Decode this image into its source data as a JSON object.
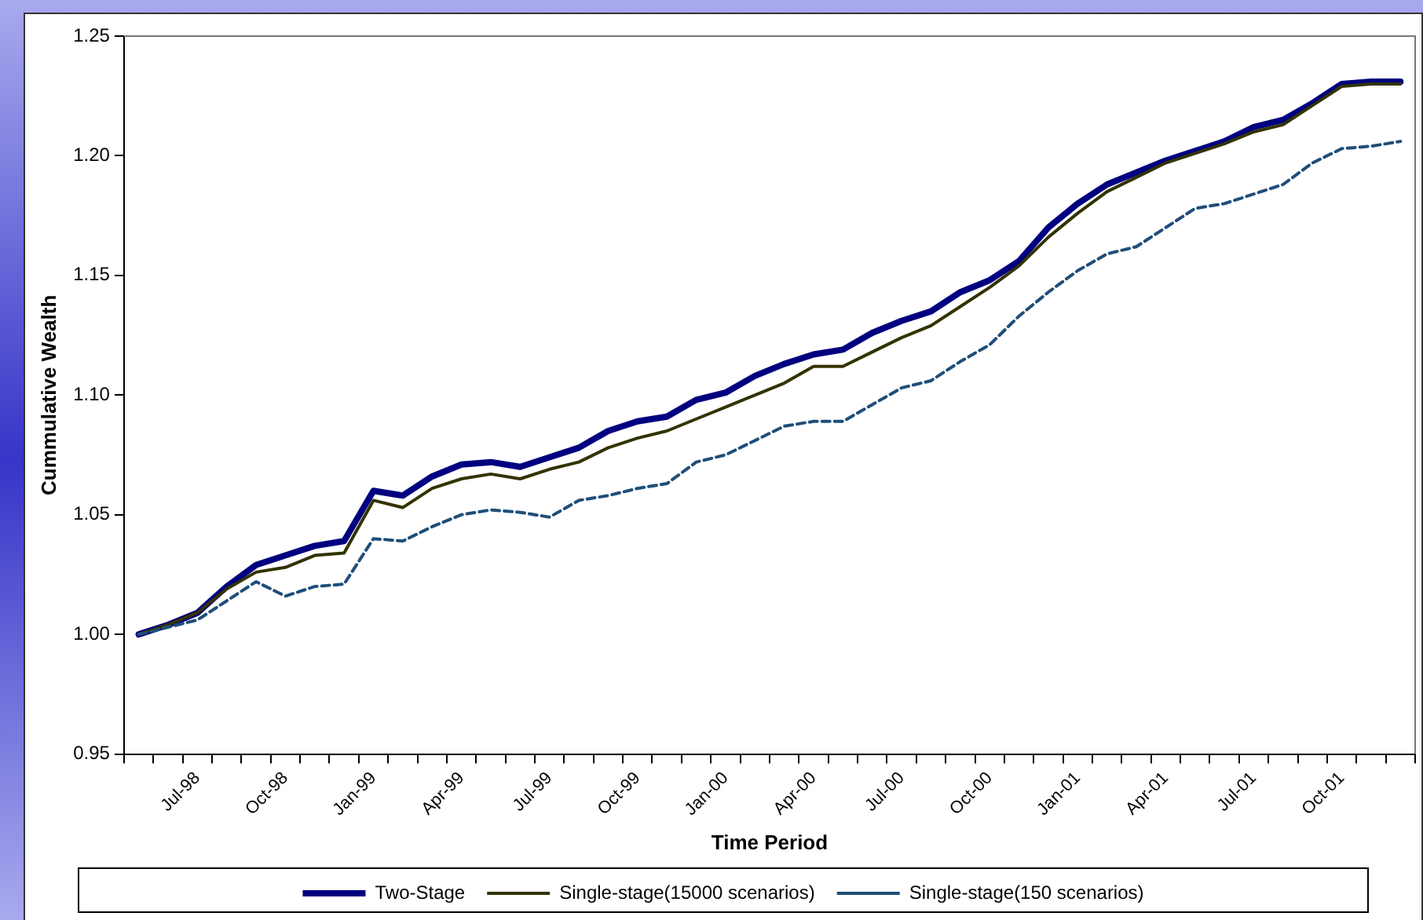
{
  "chart_data": {
    "type": "line",
    "xlabel": "Time Period",
    "ylabel": "Cummulative Wealth",
    "categories": [
      null,
      null,
      "Jul-98",
      null,
      null,
      "Oct-98",
      null,
      null,
      "Jan-99",
      null,
      null,
      "Apr-99",
      null,
      null,
      "Jul-99",
      null,
      null,
      "Oct-99",
      null,
      null,
      "Jan-00",
      null,
      null,
      "Apr-00",
      null,
      null,
      "Jul-00",
      null,
      null,
      "Oct-00",
      null,
      null,
      "Jan-01",
      null,
      null,
      "Apr-01",
      null,
      null,
      "Jul-01",
      null,
      null,
      "Oct-01",
      null,
      null
    ],
    "series": [
      {
        "name": "Two-Stage",
        "color": "#000080",
        "line_style": "solid",
        "values": [
          1.0,
          1.004,
          1.009,
          1.02,
          1.029,
          1.033,
          1.037,
          1.039,
          1.06,
          1.058,
          1.066,
          1.071,
          1.072,
          1.07,
          1.074,
          1.078,
          1.085,
          1.089,
          1.091,
          1.098,
          1.101,
          1.108,
          1.113,
          1.117,
          1.119,
          1.126,
          1.131,
          1.135,
          1.143,
          1.148,
          1.156,
          1.17,
          1.18,
          1.188,
          1.193,
          1.198,
          1.202,
          1.206,
          1.212,
          1.215,
          1.222,
          1.23,
          1.231,
          1.231
        ]
      },
      {
        "name": "Single-stage(15000 scenarios)",
        "color": "#333300",
        "line_style": "solid",
        "values": [
          1.0,
          1.004,
          1.009,
          1.019,
          1.026,
          1.028,
          1.033,
          1.034,
          1.056,
          1.053,
          1.061,
          1.065,
          1.067,
          1.065,
          1.069,
          1.072,
          1.078,
          1.082,
          1.085,
          1.09,
          1.095,
          1.1,
          1.105,
          1.112,
          1.112,
          1.118,
          1.124,
          1.129,
          1.137,
          1.145,
          1.154,
          1.166,
          1.176,
          1.185,
          1.191,
          1.197,
          1.201,
          1.205,
          1.21,
          1.213,
          1.221,
          1.229,
          1.23,
          1.23
        ]
      },
      {
        "name": "Single-stage(150 scenarios)",
        "color": "#1f4e79",
        "line_style": "dashed",
        "values": [
          1.0,
          1.003,
          1.006,
          1.014,
          1.022,
          1.016,
          1.02,
          1.021,
          1.04,
          1.039,
          1.045,
          1.05,
          1.052,
          1.051,
          1.049,
          1.056,
          1.058,
          1.061,
          1.063,
          1.072,
          1.075,
          1.081,
          1.087,
          1.089,
          1.089,
          1.096,
          1.103,
          1.106,
          1.114,
          1.121,
          1.133,
          1.143,
          1.152,
          1.159,
          1.162,
          1.17,
          1.178,
          1.18,
          1.184,
          1.188,
          1.197,
          1.203,
          1.204,
          1.206
        ]
      }
    ],
    "ylim": [
      0.95,
      1.25
    ],
    "yticks": [
      {
        "value": 0.95,
        "label": "0.95"
      },
      {
        "value": 1,
        "label": "1.00"
      },
      {
        "value": 1.05,
        "label": "1.05"
      },
      {
        "value": 1.1,
        "label": "1.10"
      },
      {
        "value": 1.15,
        "label": "1.15"
      },
      {
        "value": 1.2,
        "label": "1.20"
      },
      {
        "value": 1.25,
        "label": "1.25"
      }
    ],
    "grid": false,
    "legend": "bottom",
    "marker": "none"
  }
}
